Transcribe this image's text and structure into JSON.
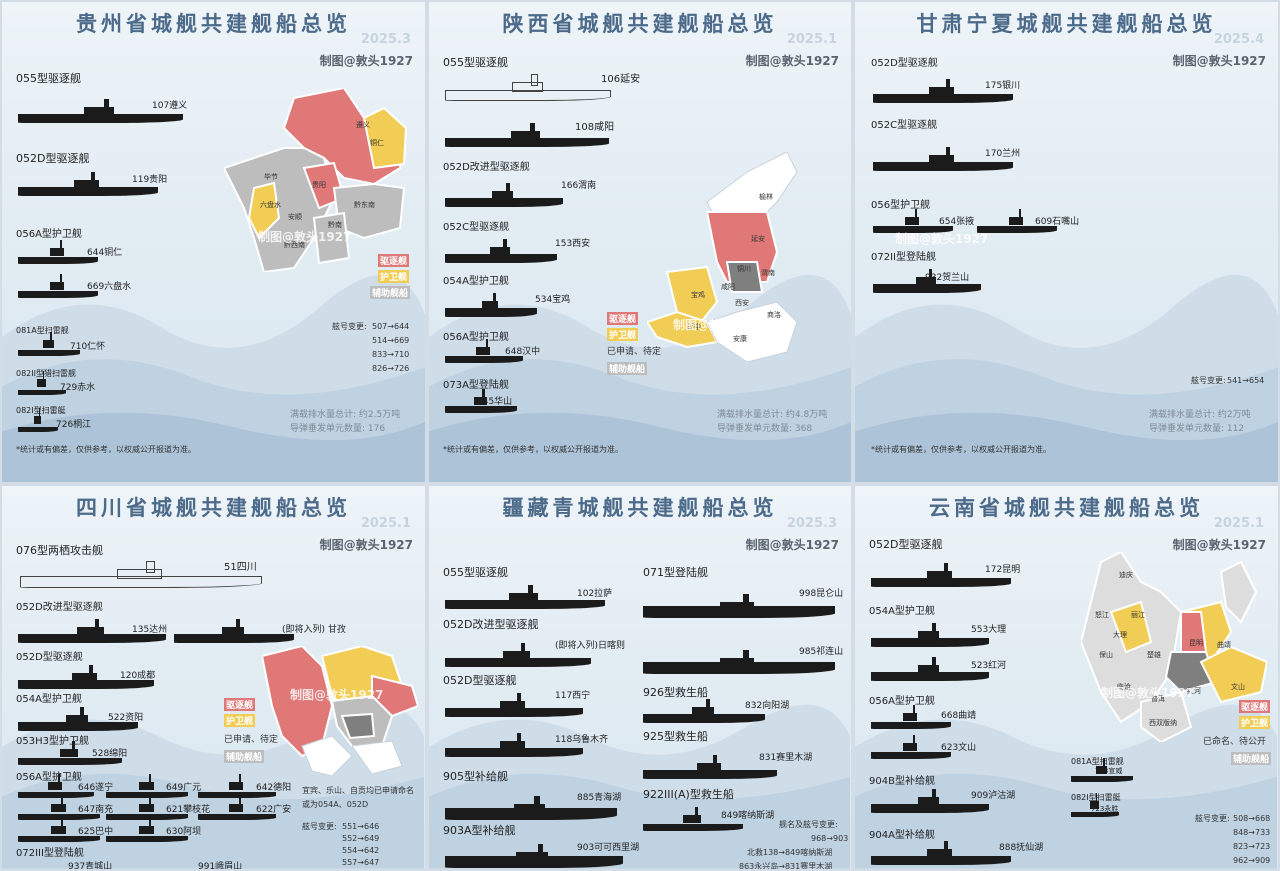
{
  "colors": {
    "destroyer": "#e07878",
    "frigate": "#f2cd55",
    "other": "#bdbdbd",
    "title": "#4c6a8a"
  },
  "panels": [
    {
      "title": "贵州省城舰共建舰船总览",
      "date": "2025.3",
      "author": "制图@敦头1927",
      "groups": [
        {
          "type": "055型驱逐舰",
          "ships": [
            "107遵义"
          ]
        },
        {
          "type": "052D型驱逐舰",
          "ships": [
            "119贵阳"
          ]
        },
        {
          "type": "056A型护卫舰",
          "ships": [
            "644铜仁",
            "669六盘水"
          ]
        },
        {
          "type": "081A型扫雷舰",
          "ships": [
            "710仁怀"
          ]
        },
        {
          "type": "082II型猎扫雷舰",
          "ships": [
            "729赤水"
          ]
        },
        {
          "type": "082I型扫雷艇",
          "ships": [
            "726桐江"
          ]
        }
      ],
      "map_labels": [
        "遵义",
        "铜仁",
        "毕节",
        "贵阳",
        "六盘水",
        "安顺",
        "黔南",
        "黔东南",
        "黔西南"
      ],
      "legend": [
        "驱逐舰",
        "护卫舰",
        "辅助舰船"
      ],
      "changes_title": "舷号变更:",
      "changes": [
        "507→644",
        "514→669",
        "833→710",
        "826→726"
      ],
      "stats": [
        "满载排水量总计: 约2.5万吨",
        "导弹垂发单元数量: 176"
      ],
      "note": "*统计或有偏差，仅供参考，以权威公开报道为准。"
    },
    {
      "title": "陕西省城舰共建舰船总览",
      "date": "2025.1",
      "author": "制图@敦头1927",
      "groups": [
        {
          "type": "055型驱逐舰",
          "ships": [
            "106延安",
            "108咸阳"
          ]
        },
        {
          "type": "052D改进型驱逐舰",
          "ships": [
            "166渭南"
          ]
        },
        {
          "type": "052C型驱逐舰",
          "ships": [
            "153西安"
          ]
        },
        {
          "type": "054A型护卫舰",
          "ships": [
            "534宝鸡"
          ]
        },
        {
          "type": "056A型护卫舰",
          "ships": [
            "648汉中"
          ]
        },
        {
          "type": "073A型登陆舰",
          "ships": [
            "945华山"
          ]
        }
      ],
      "map_labels": [
        "榆林",
        "延安",
        "铜川",
        "渭南",
        "咸阳",
        "西安",
        "宝鸡",
        "汉中",
        "商洛",
        "安康"
      ],
      "legend": [
        "驱逐舰",
        "护卫舰",
        "已申请、待定",
        "辅助舰船"
      ],
      "stats": [
        "满载排水量总计: 约4.8万吨",
        "导弹垂发单元数量: 368"
      ],
      "note": "*统计或有偏差，仅供参考，以权威公开报道为准。"
    },
    {
      "title": "甘肃宁夏城舰共建舰船总览",
      "date": "2025.4",
      "author": "制图@敦头1927",
      "groups": [
        {
          "type": "052D型驱逐舰",
          "ships": [
            "175银川"
          ]
        },
        {
          "type": "052C型驱逐舰",
          "ships": [
            "170兰州"
          ]
        },
        {
          "type": "056型护卫舰",
          "ships": [
            "654张掖",
            "609石嘴山"
          ]
        },
        {
          "type": "072II型登陆舰",
          "ships": [
            "932贺兰山"
          ]
        }
      ],
      "changes_title": "舷号变更:",
      "changes": [
        "541→654"
      ],
      "stats": [
        "满载排水量总计: 约2万吨",
        "导弹垂发单元数量: 112"
      ],
      "note": "*统计或有偏差，仅供参考，以权威公开报道为准。"
    },
    {
      "title": "四川省城舰共建舰船总览",
      "date": "2025.1",
      "author": "制图@敦头1927",
      "groups": [
        {
          "type": "076型两栖攻击舰",
          "ships": [
            "51四川"
          ]
        },
        {
          "type": "052D改进型驱逐舰",
          "ships": [
            "135达州",
            "(即将入列) 甘孜"
          ]
        },
        {
          "type": "052D型驱逐舰",
          "ships": [
            "120成都"
          ]
        },
        {
          "type": "054A型护卫舰",
          "ships": [
            "522资阳"
          ]
        },
        {
          "type": "053H3型护卫舰",
          "ships": [
            "528绵阳"
          ]
        },
        {
          "type": "056A型护卫舰",
          "ships": [
            "646遂宁",
            "649广元",
            "642德阳",
            "647南充",
            "621攀枝花",
            "622广安",
            "625巴中",
            "630阿坝"
          ]
        },
        {
          "type": "072III型登陆舰",
          "ships": [
            "937青城山",
            "991峨眉山"
          ]
        }
      ],
      "legend": [
        "驱逐舰",
        "护卫舰",
        "已申请、待定",
        "辅助舰船"
      ],
      "side_note": [
        "宜宾、乐山、自贡均已申请命名",
        "或为054A、052D"
      ],
      "changes_title": "舷号变更:",
      "changes": [
        "551→646",
        "552→649",
        "554→642",
        "557→647"
      ]
    },
    {
      "title": "疆藏青城舰共建舰船总览",
      "date": "2025.3",
      "author": "制图@敦头1927",
      "groups": [
        {
          "type": "055型驱逐舰",
          "ships": [
            "102拉萨"
          ]
        },
        {
          "type": "052D改进型驱逐舰",
          "ships": [
            "(即将入列)日喀则"
          ]
        },
        {
          "type": "052D型驱逐舰",
          "ships": [
            "117西宁",
            "118乌鲁木齐"
          ]
        },
        {
          "type": "905型补给舰",
          "ships": [
            "885青海湖"
          ]
        },
        {
          "type": "903A型补给舰",
          "ships": [
            "903可可西里湖"
          ]
        },
        {
          "type": "071型登陆舰",
          "ships": [
            "998昆仑山",
            "985祁连山"
          ]
        },
        {
          "type": "926型救生船",
          "ships": [
            "832向阳湖"
          ]
        },
        {
          "type": "925型救生船",
          "ships": [
            "831赛里木湖"
          ]
        },
        {
          "type": "922III(A)型救生船",
          "ships": [
            "849喀纳斯湖"
          ]
        }
      ],
      "changes_title": "舰名及舷号变更:",
      "changes": [
        "968→903",
        "北救138→849喀纳斯湖",
        "863永兴岛→831赛里木湖"
      ]
    },
    {
      "title": "云南省城舰共建舰船总览",
      "date": "2025.1",
      "author": "制图@敦头1927",
      "groups": [
        {
          "type": "052D型驱逐舰",
          "ships": [
            "172昆明"
          ]
        },
        {
          "type": "054A型护卫舰",
          "ships": [
            "553大理",
            "523红河"
          ]
        },
        {
          "type": "056A型护卫舰",
          "ships": [
            "668曲靖",
            "623文山"
          ]
        },
        {
          "type": "904B型补给舰",
          "ships": [
            "909泸沽湖"
          ]
        },
        {
          "type": "904A型补给舰",
          "ships": [
            "888抚仙湖"
          ]
        },
        {
          "type": "081A型扫雷舰",
          "ships": [
            "733宣威"
          ]
        },
        {
          "type": "082I型扫雷艇",
          "ships": [
            "723永胜"
          ]
        }
      ],
      "legend": [
        "驱逐舰",
        "护卫舰",
        "已命名、待公开",
        "辅助舰船"
      ],
      "map_labels": [
        "迪庆",
        "怒江",
        "丽江",
        "大理",
        "保山",
        "楚雄",
        "昆明",
        "曲靖",
        "红河",
        "文山",
        "西双版纳",
        "普洱",
        "临沧"
      ],
      "changes_title": "舷号变更:",
      "changes": [
        "508→668",
        "848→733",
        "823→723",
        "962→909"
      ]
    }
  ]
}
